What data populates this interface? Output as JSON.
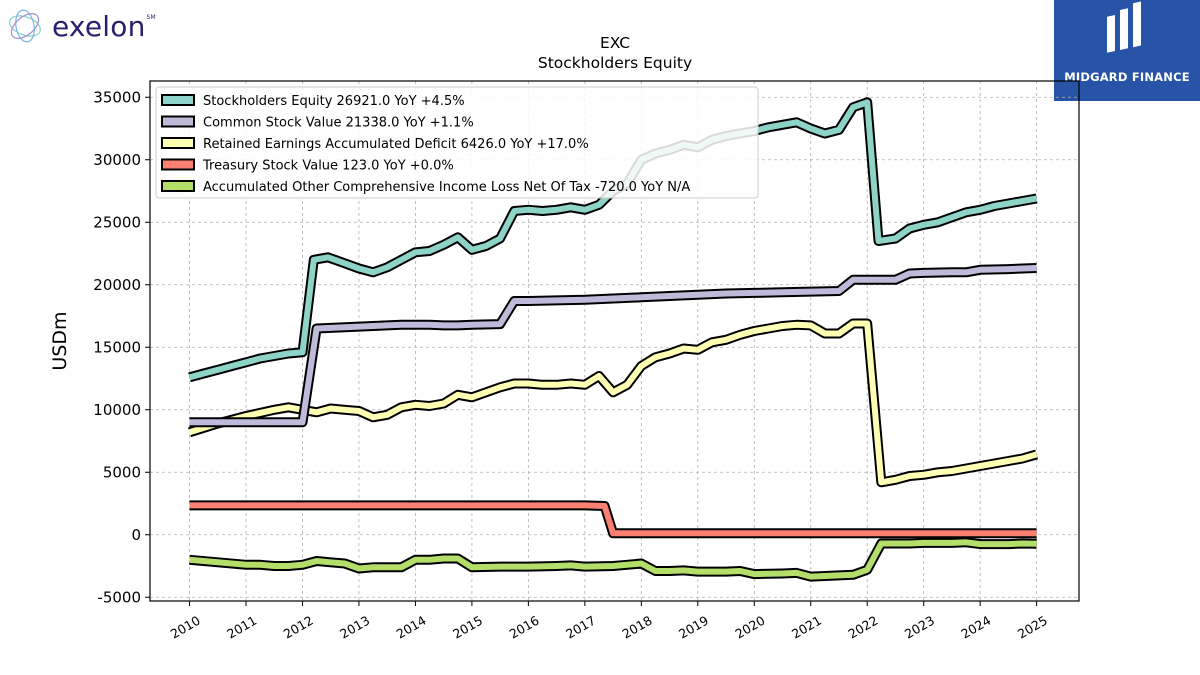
{
  "brand": {
    "left_logo_text": "exelon",
    "left_logo_mark": "SM",
    "right_logo_text": "MIDGARD FINANCE"
  },
  "chart_data": {
    "type": "line",
    "title": "EXC",
    "subtitle": "Stockholders  Equity",
    "xlabel": "",
    "ylabel": "USDm",
    "ylim": [
      -5300,
      36300
    ],
    "xlim": [
      2009.3,
      2025.75
    ],
    "yticks": [
      -5000,
      0,
      5000,
      10000,
      15000,
      20000,
      25000,
      30000,
      35000
    ],
    "xticks": [
      2010,
      2011,
      2012,
      2013,
      2014,
      2015,
      2016,
      2017,
      2018,
      2019,
      2020,
      2021,
      2022,
      2023,
      2024,
      2025
    ],
    "grid": true,
    "legend_position": "top-left",
    "series": [
      {
        "name": "Stockholders Equity",
        "legend": "Stockholders Equity  26921.0 YoY +4.5%",
        "color": "#8dd3c7",
        "x": [
          2010.0,
          2010.25,
          2010.5,
          2010.75,
          2011.0,
          2011.25,
          2011.5,
          2011.75,
          2012.0,
          2012.2,
          2012.45,
          2012.7,
          2013.0,
          2013.25,
          2013.5,
          2013.75,
          2014.0,
          2014.25,
          2014.5,
          2014.75,
          2015.0,
          2015.25,
          2015.5,
          2015.75,
          2016.0,
          2016.25,
          2016.5,
          2016.75,
          2017.0,
          2017.25,
          2017.5,
          2017.75,
          2018.0,
          2018.25,
          2018.5,
          2018.75,
          2019.0,
          2019.25,
          2019.5,
          2019.75,
          2020.0,
          2020.25,
          2020.5,
          2020.75,
          2021.0,
          2021.25,
          2021.5,
          2021.75,
          2022.0,
          2022.2,
          2022.5,
          2022.75,
          2023.0,
          2023.25,
          2023.5,
          2023.75,
          2024.0,
          2024.25,
          2024.5,
          2024.75,
          2025.0
        ],
        "values": [
          12600,
          12900,
          13200,
          13500,
          13800,
          14100,
          14300,
          14500,
          14600,
          22000,
          22200,
          21800,
          21300,
          21000,
          21400,
          22000,
          22600,
          22700,
          23200,
          23800,
          22800,
          23100,
          23700,
          25900,
          26000,
          25900,
          26000,
          26200,
          26000,
          26400,
          27500,
          28100,
          30000,
          30500,
          30800,
          31200,
          31000,
          31600,
          31900,
          32100,
          32300,
          32600,
          32800,
          33000,
          32500,
          32100,
          32400,
          34200,
          34600,
          23500,
          23700,
          24500,
          24800,
          25000,
          25400,
          25800,
          26000,
          26300,
          26500,
          26700,
          26900
        ]
      },
      {
        "name": "Common Stock Value",
        "legend": "Common Stock Value  21338.0 YoY +1.1%",
        "color": "#bebada",
        "x": [
          2010.0,
          2010.5,
          2011.0,
          2011.5,
          2012.0,
          2012.25,
          2012.75,
          2013.25,
          2013.75,
          2014.25,
          2014.5,
          2014.75,
          2015.0,
          2015.5,
          2015.75,
          2016.0,
          2016.5,
          2017.0,
          2017.5,
          2018.0,
          2018.5,
          2019.0,
          2019.5,
          2020.0,
          2020.5,
          2021.0,
          2021.5,
          2021.75,
          2022.0,
          2022.25,
          2022.5,
          2022.75,
          2023.0,
          2023.5,
          2023.75,
          2024.0,
          2024.5,
          2024.75,
          2025.0
        ],
        "values": [
          9000,
          9000,
          9000,
          9000,
          9000,
          16500,
          16600,
          16700,
          16800,
          16800,
          16750,
          16750,
          16800,
          16850,
          18700,
          18700,
          18750,
          18800,
          18900,
          19000,
          19100,
          19200,
          19300,
          19350,
          19400,
          19450,
          19500,
          20400,
          20400,
          20400,
          20400,
          20900,
          20950,
          21000,
          21000,
          21200,
          21250,
          21300,
          21340
        ]
      },
      {
        "name": "Retained Earnings Accumulated Deficit",
        "legend": "Retained Earnings Accumulated Deficit  6426.0 YoY +17.0%",
        "color": "#ffffb3",
        "x": [
          2010.0,
          2010.5,
          2011.0,
          2011.5,
          2011.75,
          2012.0,
          2012.25,
          2012.5,
          2012.75,
          2013.0,
          2013.25,
          2013.5,
          2013.75,
          2014.0,
          2014.25,
          2014.5,
          2014.75,
          2015.0,
          2015.25,
          2015.5,
          2015.75,
          2016.0,
          2016.25,
          2016.5,
          2016.75,
          2017.0,
          2017.25,
          2017.5,
          2017.75,
          2018.0,
          2018.25,
          2018.5,
          2018.75,
          2019.0,
          2019.25,
          2019.5,
          2019.75,
          2020.0,
          2020.25,
          2020.5,
          2020.75,
          2021.0,
          2021.25,
          2021.5,
          2021.75,
          2022.0,
          2022.25,
          2022.5,
          2022.75,
          2023.0,
          2023.25,
          2023.5,
          2023.75,
          2024.0,
          2024.25,
          2024.5,
          2024.75,
          2025.0
        ],
        "values": [
          8200,
          8900,
          9500,
          10000,
          10200,
          10000,
          9800,
          10100,
          10000,
          9900,
          9400,
          9600,
          10200,
          10400,
          10300,
          10500,
          11200,
          11000,
          11400,
          11800,
          12100,
          12100,
          12000,
          12000,
          12100,
          12000,
          12700,
          11400,
          12000,
          13500,
          14200,
          14500,
          14900,
          14800,
          15400,
          15600,
          16000,
          16300,
          16500,
          16700,
          16800,
          16750,
          16100,
          16100,
          16900,
          16900,
          4200,
          4400,
          4700,
          4800,
          5000,
          5100,
          5300,
          5500,
          5700,
          5900,
          6100,
          6426
        ]
      },
      {
        "name": "Treasury Stock Value",
        "legend": "Treasury Stock Value  123.0 YoY +0.0%",
        "color": "#fb8072",
        "x": [
          2010.0,
          2011.0,
          2012.0,
          2013.0,
          2014.0,
          2015.0,
          2016.0,
          2017.0,
          2017.35,
          2017.5,
          2018.0,
          2019.0,
          2020.0,
          2021.0,
          2022.0,
          2023.0,
          2024.0,
          2025.0
        ],
        "values": [
          2350,
          2350,
          2350,
          2350,
          2350,
          2350,
          2350,
          2350,
          2300,
          120,
          123,
          123,
          123,
          123,
          123,
          123,
          123,
          123
        ]
      },
      {
        "name": "Accumulated Other Comprehensive Income Loss Net Of Tax",
        "legend": "Accumulated Other Comprehensive Income Loss Net Of Tax  -720.0 YoY N/A",
        "color": "#b3de69",
        "x": [
          2010.0,
          2010.5,
          2011.0,
          2011.25,
          2011.5,
          2011.75,
          2012.0,
          2012.25,
          2012.5,
          2012.75,
          2013.0,
          2013.25,
          2013.5,
          2013.75,
          2014.0,
          2014.25,
          2014.5,
          2014.75,
          2015.0,
          2015.5,
          2016.0,
          2016.5,
          2016.75,
          2017.0,
          2017.5,
          2017.75,
          2018.0,
          2018.25,
          2018.5,
          2018.75,
          2019.0,
          2019.5,
          2019.75,
          2020.0,
          2020.5,
          2020.75,
          2021.0,
          2021.25,
          2021.5,
          2021.75,
          2022.0,
          2022.25,
          2022.5,
          2022.75,
          2023.0,
          2023.5,
          2023.75,
          2024.0,
          2024.5,
          2024.75,
          2025.0
        ],
        "values": [
          -2000,
          -2200,
          -2400,
          -2400,
          -2500,
          -2500,
          -2400,
          -2100,
          -2200,
          -2300,
          -2700,
          -2600,
          -2600,
          -2600,
          -2000,
          -2000,
          -1900,
          -1900,
          -2600,
          -2550,
          -2550,
          -2500,
          -2450,
          -2550,
          -2500,
          -2400,
          -2300,
          -2900,
          -2900,
          -2850,
          -2950,
          -2950,
          -2900,
          -3150,
          -3100,
          -3050,
          -3350,
          -3300,
          -3250,
          -3200,
          -2800,
          -700,
          -700,
          -700,
          -650,
          -650,
          -600,
          -750,
          -750,
          -700,
          -720
        ]
      }
    ]
  }
}
